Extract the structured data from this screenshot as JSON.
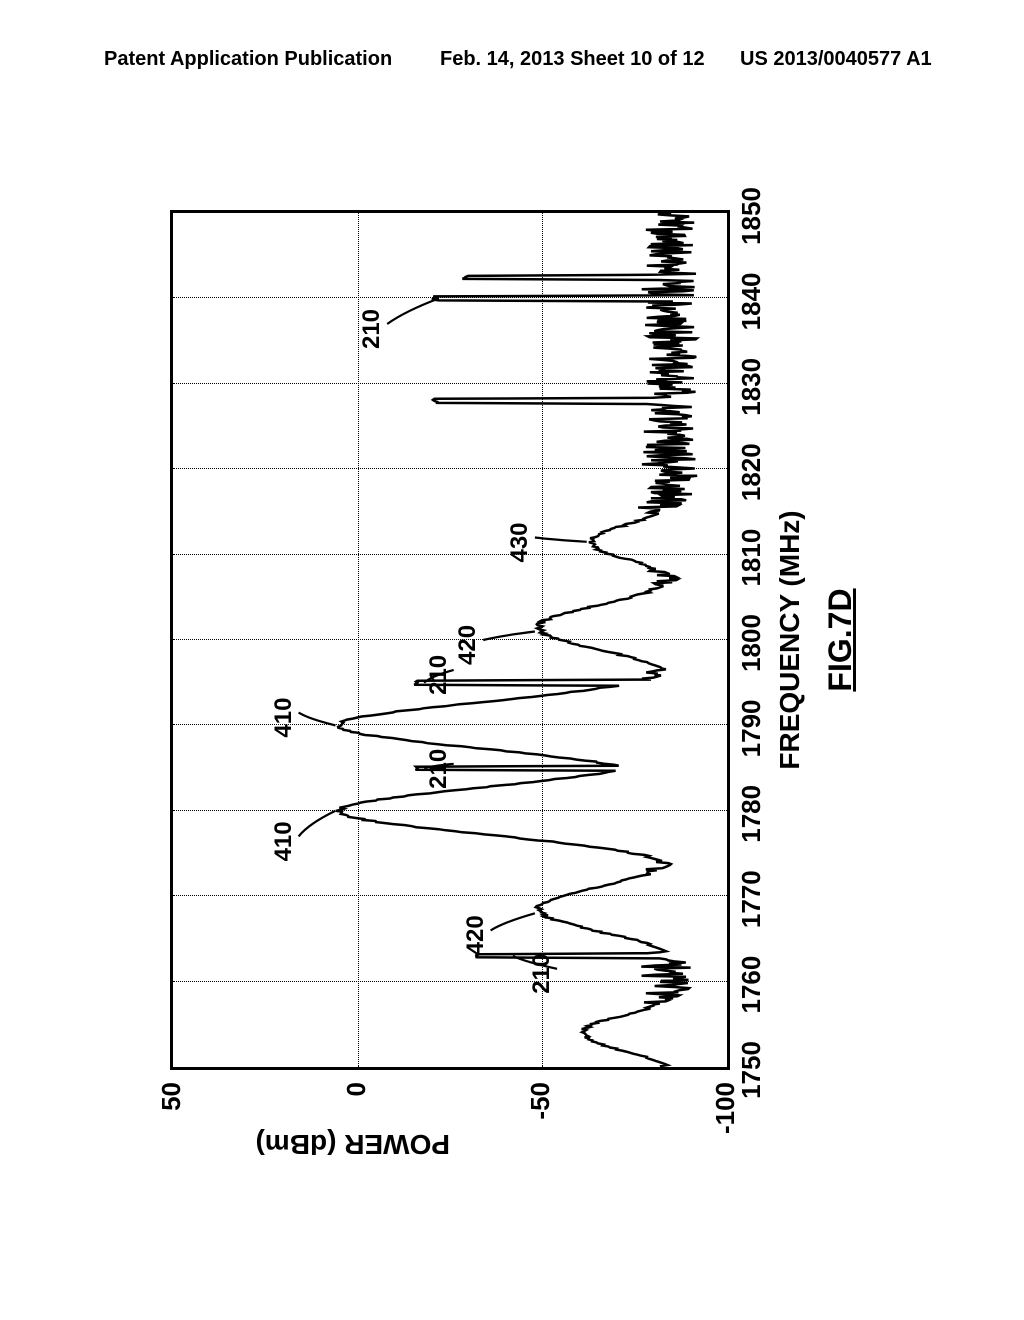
{
  "header": {
    "left": "Patent Application Publication",
    "middle": "Feb. 14, 2013  Sheet 10 of 12",
    "right": "US 2013/0040577 A1"
  },
  "chart": {
    "type": "line",
    "xlabel": "FREQUENCY (MHz)",
    "ylabel": "POWER (dBm)",
    "caption": "FIG.7D",
    "xlim": [
      1750,
      1850
    ],
    "ylim": [
      -100,
      50
    ],
    "xticks": [
      1750,
      1760,
      1770,
      1780,
      1790,
      1800,
      1810,
      1820,
      1830,
      1840,
      1850
    ],
    "yticks": [
      -100,
      -50,
      0,
      50
    ],
    "line_color": "#000000",
    "line_width": 2.5,
    "grid_color": "#000000",
    "background_color": "#ffffff",
    "noise_floor_dbm": -92,
    "noise_peak_dbm": -78,
    "features": [
      {
        "kind": "hump",
        "id": "210",
        "center_mhz": 1754,
        "peak_dbm": -60,
        "half_width_mhz": 2.5
      },
      {
        "kind": "spike",
        "id": "210",
        "center_mhz": 1763,
        "peak_dbm": -32
      },
      {
        "kind": "hump",
        "id": "420",
        "center_mhz": 1768.5,
        "peak_dbm": -48,
        "half_width_mhz": 3
      },
      {
        "kind": "peak",
        "id": "410",
        "center_mhz": 1780,
        "peak_dbm": 6,
        "half_width_mhz": 3
      },
      {
        "kind": "spike",
        "id": "210",
        "center_mhz": 1785,
        "peak_dbm": -15
      },
      {
        "kind": "peak",
        "id": "410",
        "center_mhz": 1790,
        "peak_dbm": 6,
        "half_width_mhz": 3
      },
      {
        "kind": "spike",
        "id": "210",
        "center_mhz": 1795,
        "peak_dbm": -15
      },
      {
        "kind": "hump",
        "id": "420",
        "center_mhz": 1801.5,
        "peak_dbm": -48,
        "half_width_mhz": 3
      },
      {
        "kind": "hump",
        "id": "430",
        "center_mhz": 1811.5,
        "peak_dbm": -62,
        "half_width_mhz": 2.5
      },
      {
        "kind": "spike",
        "id": null,
        "center_mhz": 1828,
        "peak_dbm": -20
      },
      {
        "kind": "spike",
        "id": "210",
        "center_mhz": 1840,
        "peak_dbm": -20
      },
      {
        "kind": "spike",
        "id": null,
        "center_mhz": 1842.5,
        "peak_dbm": -28
      }
    ],
    "annotations": [
      {
        "text": "210",
        "x_mhz": 1761.5,
        "y_dbm": -54,
        "leader_to_mhz": 1763,
        "leader_to_dbm": -42
      },
      {
        "text": "420",
        "x_mhz": 1766,
        "y_dbm": -36,
        "leader_to_mhz": 1768,
        "leader_to_dbm": -48
      },
      {
        "text": "410",
        "x_mhz": 1777,
        "y_dbm": 16,
        "leader_to_mhz": 1780,
        "leader_to_dbm": 6
      },
      {
        "text": "210",
        "x_mhz": 1785.5,
        "y_dbm": -26,
        "leader_to_mhz": 1785,
        "leader_to_dbm": -18
      },
      {
        "text": "410",
        "x_mhz": 1791.5,
        "y_dbm": 16,
        "leader_to_mhz": 1790,
        "leader_to_dbm": 6
      },
      {
        "text": "210",
        "x_mhz": 1796.5,
        "y_dbm": -26,
        "leader_to_mhz": 1795,
        "leader_to_dbm": -18
      },
      {
        "text": "420",
        "x_mhz": 1800,
        "y_dbm": -34,
        "leader_to_mhz": 1801,
        "leader_to_dbm": -48
      },
      {
        "text": "430",
        "x_mhz": 1812,
        "y_dbm": -48,
        "leader_to_mhz": 1811.5,
        "leader_to_dbm": -62
      },
      {
        "text": "210",
        "x_mhz": 1837,
        "y_dbm": -8,
        "leader_to_mhz": 1840,
        "leader_to_dbm": -22
      }
    ]
  }
}
